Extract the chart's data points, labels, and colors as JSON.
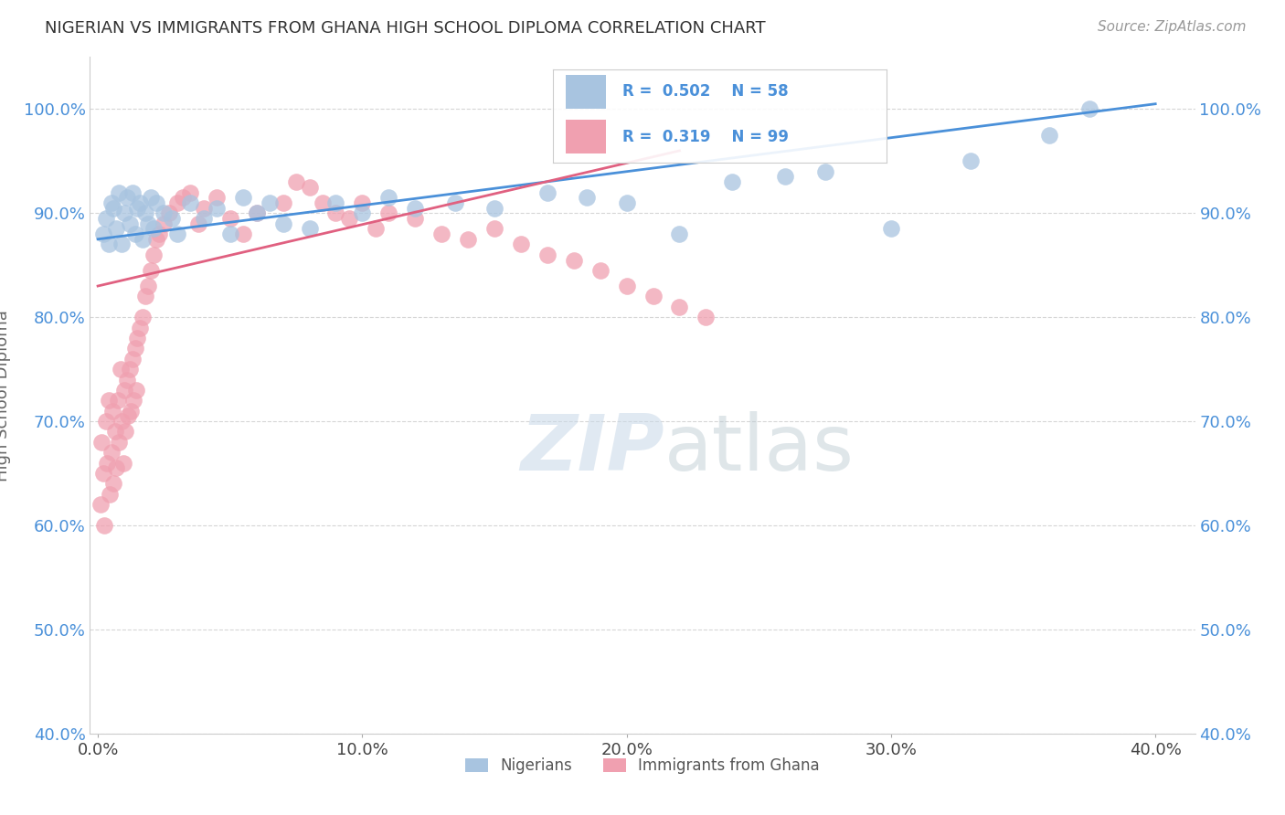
{
  "title": "NIGERIAN VS IMMIGRANTS FROM GHANA HIGH SCHOOL DIPLOMA CORRELATION CHART",
  "source": "Source: ZipAtlas.com",
  "xlabel_vals": [
    0.0,
    10.0,
    20.0,
    30.0,
    40.0
  ],
  "ylabel_vals": [
    40.0,
    50.0,
    60.0,
    70.0,
    80.0,
    90.0,
    100.0
  ],
  "ylabel_label": "High School Diploma",
  "legend_labels": [
    "Nigerians",
    "Immigrants from Ghana"
  ],
  "blue_color": "#a8c4e0",
  "pink_color": "#f0a0b0",
  "blue_line_color": "#4a90d9",
  "pink_line_color": "#e06080",
  "watermark_zip": "ZIP",
  "watermark_atlas": "atlas",
  "nigerians_x": [
    0.2,
    0.3,
    0.4,
    0.5,
    0.6,
    0.7,
    0.8,
    0.9,
    1.0,
    1.1,
    1.2,
    1.3,
    1.4,
    1.5,
    1.6,
    1.7,
    1.8,
    1.9,
    2.0,
    2.1,
    2.2,
    2.5,
    2.8,
    3.0,
    3.5,
    4.0,
    4.5,
    5.0,
    5.5,
    6.0,
    6.5,
    7.0,
    8.0,
    9.0,
    10.0,
    11.0,
    12.0,
    13.5,
    15.0,
    17.0,
    18.5,
    20.0,
    22.0,
    24.0,
    26.0,
    27.5,
    30.0,
    33.0,
    36.0,
    37.5
  ],
  "nigerians_y": [
    88.0,
    89.5,
    87.0,
    91.0,
    90.5,
    88.5,
    92.0,
    87.0,
    90.0,
    91.5,
    89.0,
    92.0,
    88.0,
    90.5,
    91.0,
    87.5,
    90.0,
    89.0,
    91.5,
    88.5,
    91.0,
    90.0,
    89.5,
    88.0,
    91.0,
    89.5,
    90.5,
    88.0,
    91.5,
    90.0,
    91.0,
    89.0,
    88.5,
    91.0,
    90.0,
    91.5,
    90.5,
    91.0,
    90.5,
    92.0,
    91.5,
    91.0,
    88.0,
    93.0,
    93.5,
    94.0,
    88.5,
    95.0,
    97.5,
    100.0
  ],
  "ghana_x": [
    0.1,
    0.15,
    0.2,
    0.25,
    0.3,
    0.35,
    0.4,
    0.45,
    0.5,
    0.55,
    0.6,
    0.65,
    0.7,
    0.75,
    0.8,
    0.85,
    0.9,
    0.95,
    1.0,
    1.05,
    1.1,
    1.15,
    1.2,
    1.25,
    1.3,
    1.35,
    1.4,
    1.45,
    1.5,
    1.6,
    1.7,
    1.8,
    1.9,
    2.0,
    2.1,
    2.2,
    2.3,
    2.5,
    2.7,
    3.0,
    3.2,
    3.5,
    3.8,
    4.0,
    4.5,
    5.0,
    5.5,
    6.0,
    7.0,
    7.5,
    8.0,
    8.5,
    9.0,
    9.5,
    10.0,
    10.5,
    11.0,
    12.0,
    13.0,
    14.0,
    15.0,
    16.0,
    17.0,
    18.0,
    19.0,
    20.0,
    21.0,
    22.0,
    23.0
  ],
  "ghana_y": [
    62.0,
    68.0,
    65.0,
    60.0,
    70.0,
    66.0,
    72.0,
    63.0,
    67.0,
    71.0,
    64.0,
    69.0,
    65.5,
    72.0,
    68.0,
    75.0,
    70.0,
    66.0,
    73.0,
    69.0,
    74.0,
    70.5,
    75.0,
    71.0,
    76.0,
    72.0,
    77.0,
    73.0,
    78.0,
    79.0,
    80.0,
    82.0,
    83.0,
    84.5,
    86.0,
    87.5,
    88.0,
    89.0,
    90.0,
    91.0,
    91.5,
    92.0,
    89.0,
    90.5,
    91.5,
    89.5,
    88.0,
    90.0,
    91.0,
    93.0,
    92.5,
    91.0,
    90.0,
    89.5,
    91.0,
    88.5,
    90.0,
    89.5,
    88.0,
    87.5,
    88.5,
    87.0,
    86.0,
    85.5,
    84.5,
    83.0,
    82.0,
    81.0,
    80.0
  ]
}
